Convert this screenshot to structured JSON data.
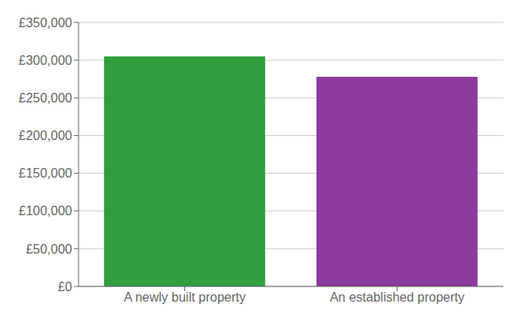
{
  "chart_data": {
    "type": "bar",
    "categories": [
      "A newly built property",
      "An established property"
    ],
    "values": [
      305000,
      278000
    ],
    "colors": [
      "#2e9e3e",
      "#8b3a9e"
    ],
    "ylim": [
      0,
      350000
    ],
    "yticks": [
      {
        "value": 0,
        "label": "£0"
      },
      {
        "value": 50000,
        "label": "£50,000"
      },
      {
        "value": 100000,
        "label": "£100,000"
      },
      {
        "value": 150000,
        "label": "£150,000"
      },
      {
        "value": 200000,
        "label": "£200,000"
      },
      {
        "value": 250000,
        "label": "£250,000"
      },
      {
        "value": 300000,
        "label": "£300,000"
      },
      {
        "value": 350000,
        "label": "£350,000"
      }
    ],
    "grid": true
  }
}
